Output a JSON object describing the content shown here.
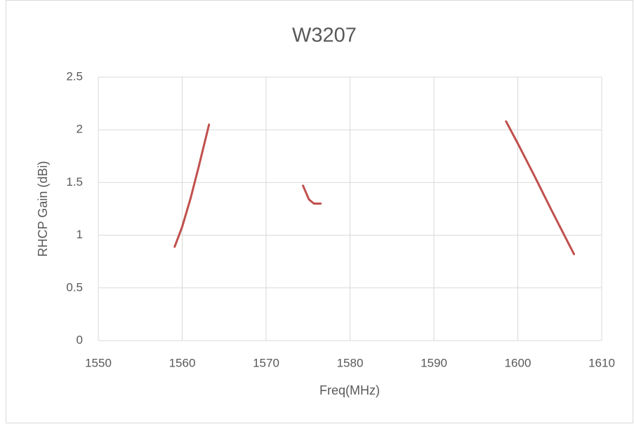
{
  "chart_data": {
    "type": "line",
    "title": "W3207",
    "x_label": "Freq(MHz)",
    "y_label": "RHCP Gain (dBi)",
    "x": [
      1559.1,
      1560,
      1561,
      1562,
      1563.2,
      null,
      1574.4,
      1575.1,
      1575.7,
      1576.5,
      null,
      1598.6,
      1600,
      1602,
      1604,
      1606.7
    ],
    "values": [
      0.89,
      1.08,
      1.35,
      1.66,
      2.05,
      null,
      1.47,
      1.34,
      1.3,
      1.3,
      null,
      2.08,
      1.87,
      1.56,
      1.24,
      0.82
    ],
    "color": "#c0504d",
    "xlim": [
      1550,
      1610
    ],
    "xticks": [
      1550,
      1560,
      1570,
      1580,
      1590,
      1600,
      1610
    ],
    "ylim": [
      0,
      2.5
    ],
    "yticks": [
      0,
      0.5,
      1,
      1.5,
      2,
      2.5
    ],
    "grid": true
  }
}
